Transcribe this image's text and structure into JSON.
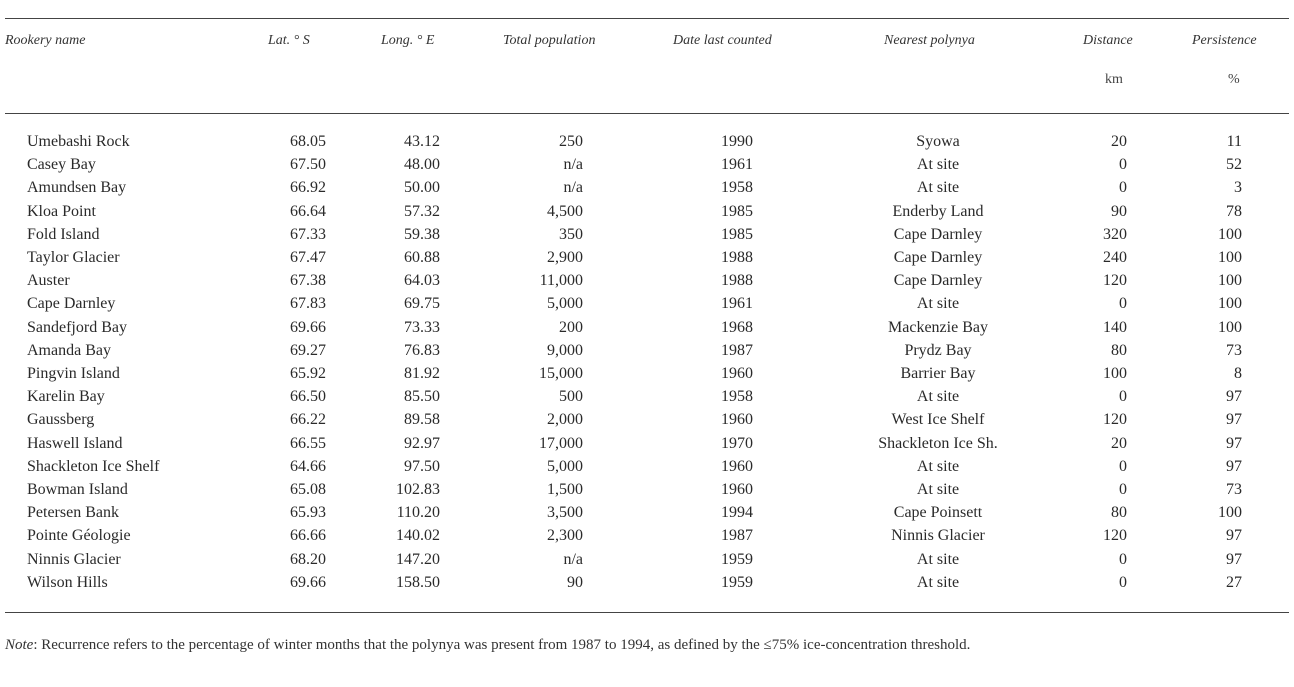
{
  "headers": [
    "Rookery name",
    "Lat. ° S",
    "Long. ° E",
    "Total population",
    "Date last counted",
    "Nearest polynya",
    "Distance",
    "Persistence"
  ],
  "units": {
    "distance": "km",
    "persistence": "%"
  },
  "rows": [
    [
      "Umebashi Rock",
      "68.05",
      "43.12",
      "250",
      "1990",
      "Syowa",
      "20",
      "11"
    ],
    [
      "Casey Bay",
      "67.50",
      "48.00",
      "n/a",
      "1961",
      "At site",
      "0",
      "52"
    ],
    [
      "Amundsen Bay",
      "66.92",
      "50.00",
      "n/a",
      "1958",
      "At site",
      "0",
      "3"
    ],
    [
      "Kloa Point",
      "66.64",
      "57.32",
      "4,500",
      "1985",
      "Enderby Land",
      "90",
      "78"
    ],
    [
      "Fold Island",
      "67.33",
      "59.38",
      "350",
      "1985",
      "Cape Darnley",
      "320",
      "100"
    ],
    [
      "Taylor Glacier",
      "67.47",
      "60.88",
      "2,900",
      "1988",
      "Cape Darnley",
      "240",
      "100"
    ],
    [
      "Auster",
      "67.38",
      "64.03",
      "11,000",
      "1988",
      "Cape Darnley",
      "120",
      "100"
    ],
    [
      "Cape Darnley",
      "67.83",
      "69.75",
      "5,000",
      "1961",
      "At site",
      "0",
      "100"
    ],
    [
      "Sandefjord Bay",
      "69.66",
      "73.33",
      "200",
      "1968",
      "Mackenzie Bay",
      "140",
      "100"
    ],
    [
      "Amanda Bay",
      "69.27",
      "76.83",
      "9,000",
      "1987",
      "Prydz Bay",
      "80",
      "73"
    ],
    [
      "Pingvin Island",
      "65.92",
      "81.92",
      "15,000",
      "1960",
      "Barrier Bay",
      "100",
      "8"
    ],
    [
      "Karelin Bay",
      "66.50",
      "85.50",
      "500",
      "1958",
      "At site",
      "0",
      "97"
    ],
    [
      "Gaussberg",
      "66.22",
      "89.58",
      "2,000",
      "1960",
      "West Ice Shelf",
      "120",
      "97"
    ],
    [
      "Haswell Island",
      "66.55",
      "92.97",
      "17,000",
      "1970",
      "Shackleton Ice Sh.",
      "20",
      "97"
    ],
    [
      "Shackleton Ice Shelf",
      "64.66",
      "97.50",
      "5,000",
      "1960",
      "At site",
      "0",
      "97"
    ],
    [
      "Bowman Island",
      "65.08",
      "102.83",
      "1,500",
      "1960",
      "At site",
      "0",
      "73"
    ],
    [
      "Petersen Bank",
      "65.93",
      "110.20",
      "3,500",
      "1994",
      "Cape Poinsett",
      "80",
      "100"
    ],
    [
      "Pointe Géologie",
      "66.66",
      "140.02",
      "2,300",
      "1987",
      "Ninnis Glacier",
      "120",
      "97"
    ],
    [
      "Ninnis Glacier",
      "68.20",
      "147.20",
      "n/a",
      "1959",
      "At site",
      "0",
      "97"
    ],
    [
      "Wilson Hills",
      "69.66",
      "158.50",
      "90",
      "1959",
      "At site",
      "0",
      "27"
    ]
  ],
  "note": {
    "label": "Note",
    "text": ": Recurrence refers to the percentage of winter months that the polynya was present from 1987 to 1994, as defined by the ≤75% ice-concentration threshold."
  }
}
